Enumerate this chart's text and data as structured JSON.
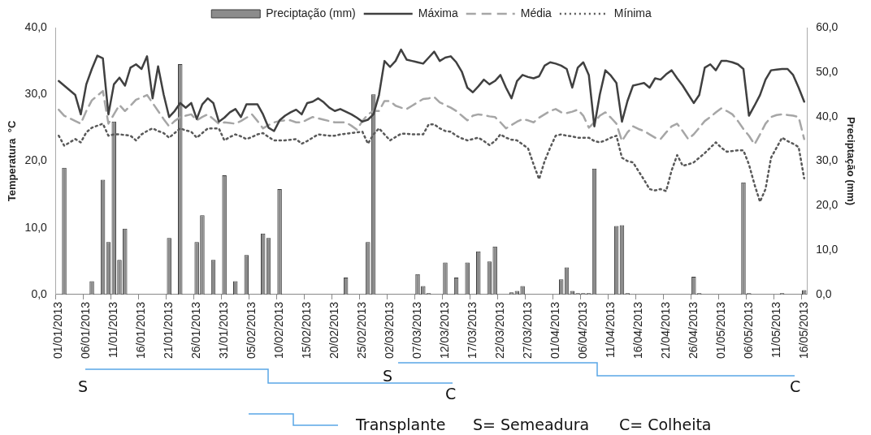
{
  "chart_data": {
    "type": "line",
    "ylabel": "Temperatura  °C",
    "y2label": "Preciptação (mm)",
    "categories": [
      "01/01/2013",
      null,
      null,
      null,
      null,
      "06/01/2013",
      null,
      null,
      null,
      null,
      "11/01/2013",
      null,
      null,
      null,
      null,
      "16/01/2013",
      null,
      null,
      null,
      null,
      "21/01/2013",
      null,
      null,
      null,
      null,
      "26/01/2013",
      null,
      null,
      null,
      null,
      "31/01/2013",
      null,
      null,
      null,
      null,
      "05/02/2013",
      null,
      null,
      null,
      null,
      "10/02/2013",
      null,
      null,
      null,
      null,
      "15/02/2013",
      null,
      null,
      null,
      null,
      "20/02/2013",
      null,
      null,
      null,
      null,
      "25/02/2013",
      null,
      null,
      null,
      null,
      "02/03/2013",
      null,
      null,
      null,
      null,
      "07/03/2013",
      null,
      null,
      null,
      null,
      "12/03/2013",
      null,
      null,
      null,
      null,
      "17/03/2013",
      null,
      null,
      null,
      null,
      "22/03/2013",
      null,
      null,
      null,
      null,
      "27/03/2013",
      null,
      null,
      null,
      null,
      "01/04/2013",
      null,
      null,
      null,
      null,
      "06/04/2013",
      null,
      null,
      null,
      null,
      "11/04/2013",
      null,
      null,
      null,
      null,
      "16/04/2013",
      null,
      null,
      null,
      null,
      "21/04/2013",
      null,
      null,
      null,
      null,
      "26/04/2013",
      null,
      null,
      null,
      null,
      "01/05/2013",
      null,
      null,
      null,
      null,
      "06/05/2013",
      null,
      null,
      null,
      null,
      "11/05/2013",
      null,
      null,
      null,
      null,
      "16/05/2013"
    ],
    "series": [
      {
        "name": "Preciptação (mm)",
        "type": "bar",
        "axis": "y2",
        "color": "#8c8c8c",
        "values": [
          0,
          28.5,
          0,
          0,
          0,
          0,
          3.0,
          0,
          25.8,
          11.8,
          38.9,
          7.8,
          14.8,
          0,
          0,
          0,
          0,
          0,
          0,
          0,
          12.7,
          0,
          51.8,
          0,
          0,
          11.8,
          17.8,
          0,
          7.8,
          0,
          26.8,
          0,
          3.0,
          0,
          8.9,
          0,
          0,
          13.7,
          12.7,
          0,
          23.7,
          0,
          0,
          0,
          0,
          0,
          0,
          0,
          0,
          0,
          0,
          0,
          3.8,
          0,
          0,
          0,
          11.8,
          45.0,
          0,
          0,
          0,
          0,
          0,
          0,
          0,
          4.6,
          1.9,
          0.3,
          0,
          0,
          7.2,
          0,
          3.8,
          0,
          7.2,
          0,
          9.7,
          0,
          7.4,
          10.8,
          0,
          0,
          0.5,
          0.8,
          1.9,
          0,
          0,
          0,
          0,
          0,
          0,
          3.4,
          6.1,
          0.8,
          0.3,
          0.3,
          0.3,
          28.3,
          0,
          0,
          0,
          15.4,
          15.6,
          0.3,
          0,
          0,
          0,
          0,
          0,
          0,
          0,
          0,
          0,
          0,
          0,
          4.0,
          0.3,
          0,
          0,
          0,
          0,
          0,
          0,
          0,
          25.2,
          0.3,
          0,
          0,
          0,
          0,
          0,
          0.3,
          0,
          0,
          0,
          1.0
        ]
      },
      {
        "name": "Máxima",
        "line_style": "solid",
        "color": "#404040",
        "values": [
          32.0,
          31.3,
          30.6,
          29.9,
          27.0,
          31.5,
          33.8,
          35.8,
          35.4,
          27.0,
          31.5,
          32.5,
          31.3,
          34.0,
          34.5,
          33.8,
          35.7,
          29.4,
          34.2,
          30.0,
          26.6,
          27.5,
          28.7,
          28.0,
          28.7,
          26.3,
          28.5,
          29.4,
          28.7,
          25.9,
          26.5,
          27.3,
          27.8,
          26.6,
          28.5,
          28.5,
          28.5,
          27.0,
          25.0,
          24.5,
          26.1,
          26.8,
          27.3,
          27.7,
          27.0,
          28.7,
          28.9,
          29.4,
          28.8,
          28.0,
          27.5,
          27.8,
          27.4,
          27.0,
          26.5,
          25.9,
          26.2,
          27.0,
          29.9,
          35.0,
          34.1,
          35.0,
          36.7,
          35.2,
          35.0,
          34.8,
          34.6,
          35.5,
          36.4,
          35.0,
          35.5,
          35.7,
          34.8,
          33.4,
          31.0,
          30.3,
          31.2,
          32.2,
          31.5,
          32.0,
          32.9,
          31.0,
          29.4,
          32.0,
          32.9,
          32.6,
          32.4,
          32.7,
          34.3,
          34.8,
          34.6,
          34.3,
          33.8,
          31.0,
          34.0,
          34.8,
          32.9,
          25.2,
          30.0,
          33.6,
          32.8,
          31.7,
          25.9,
          29.0,
          31.3,
          31.5,
          31.7,
          31.0,
          32.4,
          32.2,
          33.0,
          33.6,
          32.4,
          31.3,
          30.0,
          28.7,
          29.9,
          34.0,
          34.5,
          33.6,
          35.0,
          35.0,
          34.8,
          34.5,
          33.8,
          26.8,
          28.3,
          29.9,
          32.2,
          33.6,
          33.7,
          33.8,
          33.8,
          32.9,
          31.0,
          28.9
        ]
      },
      {
        "name": "Média",
        "line_style": "dashed",
        "color": "#a6a6a6",
        "values": [
          27.7,
          26.8,
          26.4,
          26.0,
          25.6,
          27.5,
          29.1,
          29.8,
          30.5,
          25.6,
          27.0,
          28.4,
          27.5,
          28.3,
          29.2,
          29.5,
          29.9,
          28.7,
          27.5,
          26.3,
          25.2,
          26.0,
          26.6,
          26.8,
          27.0,
          26.1,
          26.6,
          27.0,
          26.3,
          25.6,
          25.8,
          25.7,
          25.6,
          26.0,
          26.5,
          27.0,
          26.0,
          24.9,
          25.4,
          25.8,
          26.0,
          26.1,
          26.1,
          25.8,
          25.8,
          26.2,
          26.6,
          26.4,
          26.2,
          26.0,
          25.8,
          25.8,
          25.8,
          25.3,
          24.7,
          26.0,
          27.0,
          27.5,
          27.5,
          29.0,
          29.0,
          28.3,
          28.0,
          27.8,
          28.3,
          28.8,
          29.3,
          29.4,
          29.6,
          28.8,
          28.4,
          28.0,
          27.5,
          26.8,
          26.1,
          26.8,
          27.0,
          26.9,
          26.7,
          26.6,
          25.8,
          24.9,
          25.4,
          25.9,
          26.3,
          26.1,
          25.8,
          26.5,
          27.0,
          27.5,
          27.8,
          27.3,
          27.2,
          27.4,
          27.7,
          26.8,
          25.0,
          25.8,
          26.8,
          27.3,
          26.5,
          25.6,
          23.0,
          24.3,
          25.2,
          24.8,
          24.5,
          24.0,
          23.5,
          23.3,
          24.3,
          25.2,
          25.6,
          24.5,
          23.3,
          24.0,
          25.0,
          26.0,
          26.6,
          27.3,
          27.9,
          27.5,
          27.0,
          26.0,
          24.8,
          23.8,
          22.5,
          24.0,
          25.6,
          26.6,
          26.9,
          27.0,
          26.9,
          26.8,
          26.6,
          23.3
        ]
      },
      {
        "name": "Mínima",
        "line_style": "dotted",
        "color": "#595959",
        "values": [
          23.8,
          22.3,
          22.8,
          23.3,
          22.8,
          24.3,
          25.0,
          25.3,
          25.6,
          23.8,
          24.0,
          24.0,
          23.9,
          23.8,
          23.1,
          24.0,
          24.5,
          24.9,
          24.5,
          24.2,
          23.5,
          24.2,
          24.9,
          24.6,
          24.4,
          23.5,
          24.2,
          24.9,
          24.9,
          24.9,
          23.1,
          23.6,
          24.0,
          23.7,
          23.3,
          23.6,
          24.0,
          24.2,
          23.6,
          23.1,
          23.1,
          23.1,
          23.2,
          23.3,
          22.6,
          23.0,
          23.5,
          24.0,
          23.9,
          23.8,
          23.8,
          24.0,
          24.1,
          24.2,
          24.3,
          24.4,
          22.6,
          24.0,
          24.9,
          24.0,
          23.1,
          23.6,
          24.1,
          24.1,
          24.0,
          24.0,
          24.0,
          25.5,
          25.5,
          24.9,
          24.5,
          24.4,
          23.8,
          23.4,
          23.1,
          23.3,
          23.5,
          23.0,
          22.4,
          23.0,
          24.0,
          23.5,
          23.2,
          23.1,
          22.5,
          21.9,
          19.5,
          17.3,
          20.0,
          22.0,
          23.8,
          24.0,
          23.8,
          23.7,
          23.5,
          23.5,
          23.5,
          23.0,
          22.8,
          23.1,
          23.5,
          23.8,
          20.5,
          20.0,
          19.8,
          18.5,
          17.2,
          15.8,
          15.6,
          15.8,
          15.5,
          18.6,
          20.9,
          19.3,
          19.5,
          19.8,
          20.5,
          21.2,
          22.0,
          22.8,
          22.0,
          21.4,
          21.5,
          21.6,
          21.6,
          19.5,
          16.5,
          13.9,
          15.8,
          20.5,
          22.0,
          23.5,
          23.0,
          22.6,
          22.1,
          17.4
        ]
      }
    ],
    "ylim": [
      0,
      40
    ],
    "yticks": [
      {
        "value": 0,
        "label": "0,0"
      },
      {
        "value": 10,
        "label": "10,0"
      },
      {
        "value": 20,
        "label": "20,0"
      },
      {
        "value": 30,
        "label": "30,0"
      },
      {
        "value": 40,
        "label": "40,0"
      }
    ],
    "y2lim": [
      0,
      60
    ],
    "y2ticks": [
      {
        "value": 0,
        "label": "0,0"
      },
      {
        "value": 10,
        "label": "10,0"
      },
      {
        "value": 20,
        "label": "20,0"
      },
      {
        "value": 30,
        "label": "30,0"
      },
      {
        "value": 40,
        "label": "40,0"
      },
      {
        "value": 50,
        "label": "50,0"
      },
      {
        "value": 60,
        "label": "60,0"
      }
    ],
    "legend": "top",
    "marker": "none",
    "annotations": [
      "S",
      "C",
      "S",
      "C",
      "Transplante",
      "S= Semeadura",
      "C= Colheita"
    ]
  }
}
